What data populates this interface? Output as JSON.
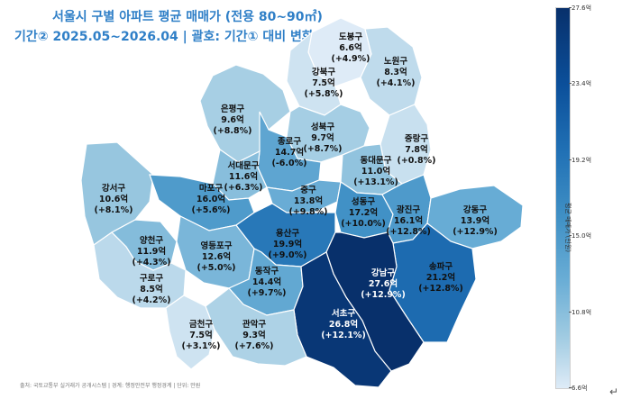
{
  "title": "서울시 구별 아파트 평균 매매가 (전용 80~90㎡)",
  "subtitle": "기간② 2025.05~2026.04 | 괄호: 기간① 대비 변화율",
  "source": "출처: 국토교통부 실거래가 공개시스템 | 경계: 행정안전부 행정경계 | 단위: 만원",
  "legend": {
    "title": "평균 매매가 (만원)",
    "ticks": [
      "27.6억",
      "23.4억",
      "19.2억",
      "15.0억",
      "10.8억",
      "6.6억"
    ],
    "min": 6.6,
    "max": 27.6
  },
  "districts": [
    {
      "name": "도봉구",
      "price": "6.6억",
      "change": "(+4.9%)",
      "value": 6.6
    },
    {
      "name": "노원구",
      "price": "8.3억",
      "change": "(+4.1%)",
      "value": 8.3
    },
    {
      "name": "강북구",
      "price": "7.5억",
      "change": "(+5.8%)",
      "value": 7.5
    },
    {
      "name": "은평구",
      "price": "9.6억",
      "change": "(+8.8%)",
      "value": 9.6
    },
    {
      "name": "성북구",
      "price": "9.7억",
      "change": "(+8.7%)",
      "value": 9.7
    },
    {
      "name": "종로구",
      "price": "14.7억",
      "change": "(-6.0%)",
      "value": 14.7
    },
    {
      "name": "중랑구",
      "price": "7.8억",
      "change": "(+0.8%)",
      "value": 7.8
    },
    {
      "name": "동대문구",
      "price": "11.0억",
      "change": "(+13.1%)",
      "value": 11.0
    },
    {
      "name": "서대문구",
      "price": "11.6억",
      "change": "(+6.3%)",
      "value": 11.6
    },
    {
      "name": "강서구",
      "price": "10.6억",
      "change": "(+8.1%)",
      "value": 10.6
    },
    {
      "name": "마포구",
      "price": "16.0억",
      "change": "(+5.6%)",
      "value": 16.0
    },
    {
      "name": "중구",
      "price": "13.8억",
      "change": "(+9.8%)",
      "value": 13.8
    },
    {
      "name": "성동구",
      "price": "17.2억",
      "change": "(+10.0%)",
      "value": 17.2
    },
    {
      "name": "광진구",
      "price": "16.1억",
      "change": "(+12.8%)",
      "value": 16.1
    },
    {
      "name": "강동구",
      "price": "13.9억",
      "change": "(+12.9%)",
      "value": 13.9
    },
    {
      "name": "양천구",
      "price": "11.9억",
      "change": "(+4.3%)",
      "value": 11.9
    },
    {
      "name": "영등포구",
      "price": "12.6억",
      "change": "(+5.0%)",
      "value": 12.6
    },
    {
      "name": "용산구",
      "price": "19.9억",
      "change": "(+9.0%)",
      "value": 19.9
    },
    {
      "name": "구로구",
      "price": "8.5억",
      "change": "(+4.2%)",
      "value": 8.5
    },
    {
      "name": "동작구",
      "price": "14.4억",
      "change": "(+9.7%)",
      "value": 14.4
    },
    {
      "name": "송파구",
      "price": "21.2억",
      "change": "(+12.8%)",
      "value": 21.2
    },
    {
      "name": "강남구",
      "price": "27.6억",
      "change": "(+12.9%)",
      "value": 27.6
    },
    {
      "name": "서초구",
      "price": "26.8억",
      "change": "(+12.1%)",
      "value": 26.8
    },
    {
      "name": "금천구",
      "price": "7.5억",
      "change": "(+3.1%)",
      "value": 7.5
    },
    {
      "name": "관악구",
      "price": "9.3억",
      "change": "(+7.6%)",
      "value": 9.3
    }
  ],
  "colors": {
    "title": "#2f7fc7",
    "scale": [
      "#deebf7",
      "#9ecae1",
      "#6baed6",
      "#4292c6",
      "#2171b5",
      "#0b4f9a",
      "#08306b"
    ]
  }
}
